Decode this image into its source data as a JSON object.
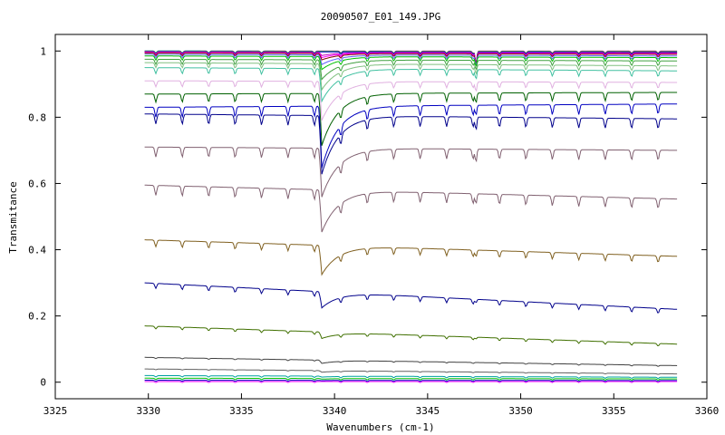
{
  "chart_data": {
    "type": "line",
    "title": "20090507_E01_149.JPG",
    "xlabel": "Wavenumbers (cm-1)",
    "ylabel": "Transmitance",
    "xlim": [
      3325,
      3360
    ],
    "ylim": [
      -0.05,
      1.05
    ],
    "xticks": [
      "3325",
      "3330",
      "3335",
      "3340",
      "3345",
      "3350",
      "3355",
      "3360"
    ],
    "yticks": [
      "0",
      "0.2",
      "0.4",
      "0.6",
      "0.8",
      "1"
    ],
    "grid": false,
    "legend": "none",
    "x_range": [
      3329.8,
      3358.4
    ],
    "main_dip_x": 3339.3,
    "second_dip_x": 3347.6,
    "series": [
      {
        "color": "#c04080",
        "start": 1.0,
        "end": 1.0,
        "main_depth": 0.0,
        "second_depth": 0.04,
        "ripple": 0.006
      },
      {
        "color": "#00a0a0",
        "start": 1.0,
        "end": 0.998,
        "main_depth": 0.0,
        "second_depth": 0.04,
        "ripple": 0.006
      },
      {
        "color": "#808000",
        "start": 0.999,
        "end": 0.997,
        "main_depth": 0.0,
        "second_depth": 0.035,
        "ripple": 0.006
      },
      {
        "color": "#0000c0",
        "start": 0.998,
        "end": 0.996,
        "main_depth": 0.0,
        "second_depth": 0.035,
        "ripple": 0.006
      },
      {
        "color": "#c000c0",
        "start": 0.997,
        "end": 0.994,
        "main_depth": 0.01,
        "second_depth": 0.03,
        "ripple": 0.007
      },
      {
        "color": "#ff00ff",
        "start": 0.996,
        "end": 0.992,
        "main_depth": 0.015,
        "second_depth": 0.03,
        "ripple": 0.007
      },
      {
        "color": "#800000",
        "start": 0.994,
        "end": 0.99,
        "main_depth": 0.02,
        "second_depth": 0.03,
        "ripple": 0.008
      },
      {
        "color": "#6060ff",
        "start": 0.99,
        "end": 0.985,
        "main_depth": 0.03,
        "second_depth": 0.03,
        "ripple": 0.01
      },
      {
        "color": "#00c000",
        "start": 0.985,
        "end": 0.98,
        "main_depth": 0.04,
        "second_depth": 0.03,
        "ripple": 0.012
      },
      {
        "color": "#40a040",
        "start": 0.975,
        "end": 0.97,
        "main_depth": 0.06,
        "second_depth": 0.03,
        "ripple": 0.015
      },
      {
        "color": "#80c080",
        "start": 0.965,
        "end": 0.955,
        "main_depth": 0.08,
        "second_depth": 0.03,
        "ripple": 0.015
      },
      {
        "color": "#40c0a0",
        "start": 0.95,
        "end": 0.94,
        "main_depth": 0.1,
        "second_depth": 0.03,
        "ripple": 0.018
      },
      {
        "color": "#e0b0e0",
        "start": 0.91,
        "end": 0.905,
        "main_depth": 0.12,
        "second_depth": 0.03,
        "ripple": 0.018
      },
      {
        "color": "#006000",
        "start": 0.87,
        "end": 0.875,
        "main_depth": 0.16,
        "second_depth": 0.03,
        "ripple": 0.025
      },
      {
        "color": "#0000c0",
        "start": 0.83,
        "end": 0.84,
        "main_depth": 0.19,
        "second_depth": 0.03,
        "ripple": 0.03
      },
      {
        "color": "#00008b",
        "start": 0.81,
        "end": 0.795,
        "main_depth": 0.18,
        "second_depth": 0.04,
        "ripple": 0.03
      },
      {
        "color": "#806070",
        "start": 0.71,
        "end": 0.7,
        "main_depth": 0.15,
        "second_depth": 0.04,
        "ripple": 0.03
      },
      {
        "color": "#806070",
        "start": 0.595,
        "end": 0.553,
        "main_depth": 0.13,
        "second_depth": 0.03,
        "ripple": 0.03
      },
      {
        "color": "#806020",
        "start": 0.43,
        "end": 0.38,
        "main_depth": 0.09,
        "second_depth": 0.02,
        "ripple": 0.02
      },
      {
        "color": "#00008b",
        "start": 0.3,
        "end": 0.22,
        "main_depth": 0.05,
        "second_depth": 0.01,
        "ripple": 0.015
      },
      {
        "color": "#407000",
        "start": 0.17,
        "end": 0.115,
        "main_depth": 0.02,
        "second_depth": 0.005,
        "ripple": 0.008
      },
      {
        "color": "#404040",
        "start": 0.075,
        "end": 0.05,
        "main_depth": 0.01,
        "second_depth": 0.0,
        "ripple": 0.003
      },
      {
        "color": "#606060",
        "start": 0.04,
        "end": 0.025,
        "main_depth": 0.005,
        "second_depth": 0.0,
        "ripple": 0.002
      },
      {
        "color": "#00a0a0",
        "start": 0.02,
        "end": 0.015,
        "main_depth": 0.003,
        "second_depth": 0.0,
        "ripple": 0.004
      },
      {
        "color": "#00c000",
        "start": 0.012,
        "end": 0.01,
        "main_depth": 0.002,
        "second_depth": 0.0,
        "ripple": 0.004
      },
      {
        "color": "#0000c0",
        "start": 0.006,
        "end": 0.005,
        "main_depth": 0.001,
        "second_depth": 0.0,
        "ripple": 0.003
      },
      {
        "color": "#ff00ff",
        "start": 0.002,
        "end": 0.002,
        "main_depth": 0.0,
        "second_depth": 0.0,
        "ripple": 0.003
      }
    ]
  }
}
